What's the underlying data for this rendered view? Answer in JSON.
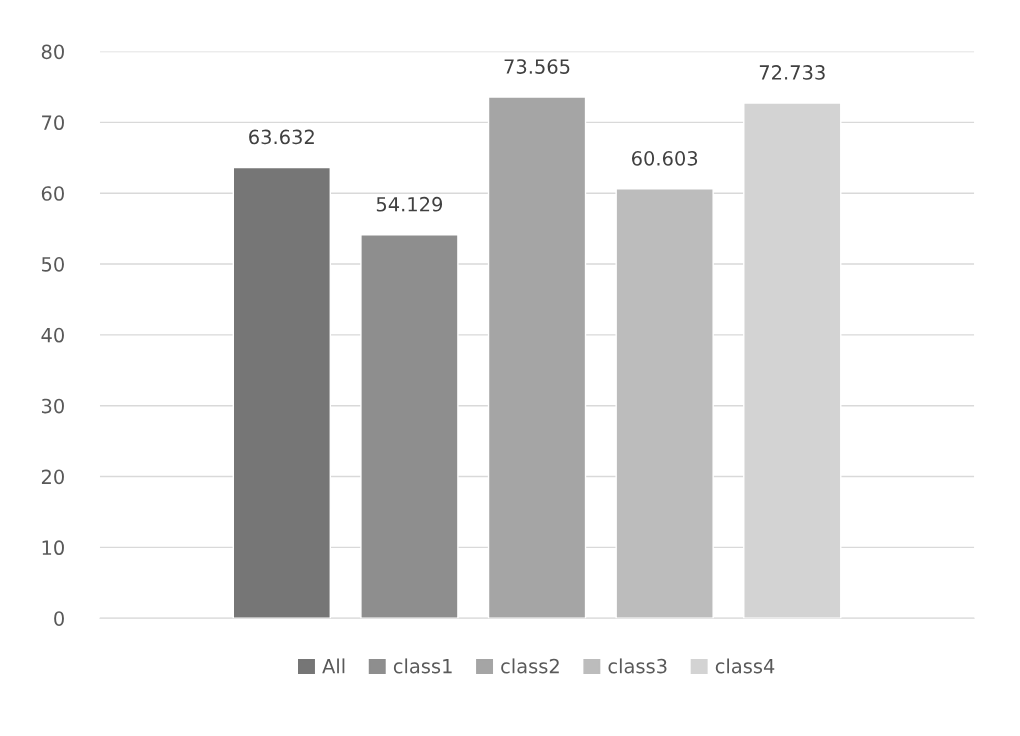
{
  "chart_data": {
    "type": "bar",
    "categories": [
      null
    ],
    "series": [
      {
        "name": "All",
        "color": "#767676",
        "values": [
          63.632
        ]
      },
      {
        "name": "class1",
        "color": "#8e8e8e",
        "values": [
          54.129
        ]
      },
      {
        "name": "class2",
        "color": "#a5a5a5",
        "values": [
          73.565
        ]
      },
      {
        "name": "class3",
        "color": "#bcbcbc",
        "values": [
          60.603
        ]
      },
      {
        "name": "class4",
        "color": "#d3d3d3",
        "values": [
          72.733
        ]
      }
    ],
    "ylim": [
      0,
      80
    ],
    "yticks": [
      0,
      10,
      20,
      30,
      40,
      50,
      60,
      70,
      80
    ],
    "grid": "y",
    "legend": "bottom",
    "data_labels": true
  }
}
